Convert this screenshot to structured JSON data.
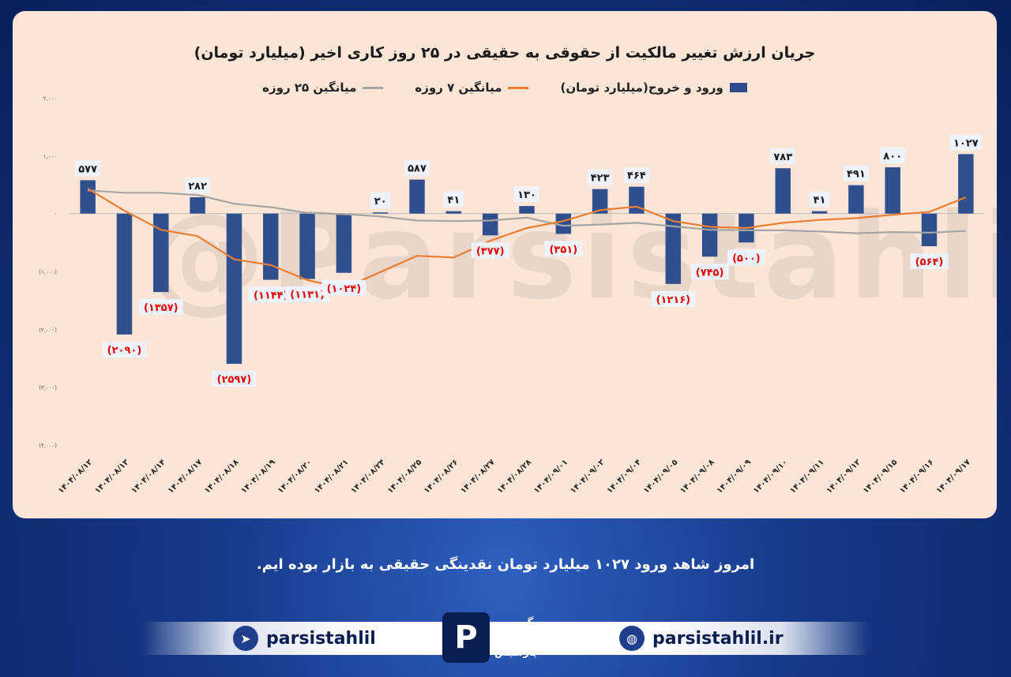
{
  "colors": {
    "bar": "#2f4f8f",
    "ma7": "#ed7d31",
    "ma25": "#a5a5a5",
    "neg_label": "#e60000",
    "pos_label": "#1a1a1a"
  },
  "chart_data": {
    "type": "bar",
    "title": "جریان ارزش تغییر مالکیت از حقوقی به حقیقی در ۲۵ روز کاری اخیر (میلیارد تومان)",
    "legend": [
      "ورود و خروج(میلیارد تومان)",
      "میانگین ۷ روزه",
      "میانگین ۲۵ روزه"
    ],
    "legend_position": "top",
    "ylim": [
      -4000,
      2000
    ],
    "yticks": [
      "(۴,۰۰۰)",
      "(۳,۰۰۰)",
      "(۲,۰۰۰)",
      "(۱,۰۰۰)",
      "۰",
      "۱,۰۰۰",
      "۲,۰۰۰"
    ],
    "ytick_values": [
      -4000,
      -3000,
      -2000,
      -1000,
      0,
      1000,
      2000
    ],
    "categories": [
      "۱۴۰۴/۰۸/۱۲",
      "۱۴۰۴/۰۸/۱۳",
      "۱۴۰۴/۰۸/۱۴",
      "۱۴۰۴/۰۸/۱۷",
      "۱۴۰۴/۰۸/۱۸",
      "۱۴۰۴/۰۸/۱۹",
      "۱۴۰۴/۰۸/۲۰",
      "۱۴۰۴/۰۸/۲۱",
      "۱۴۰۴/۰۸/۲۴",
      "۱۴۰۴/۰۸/۲۵",
      "۱۴۰۴/۰۸/۲۶",
      "۱۴۰۴/۰۸/۲۷",
      "۱۴۰۴/۰۸/۲۸",
      "۱۴۰۴/۰۹/۰۱",
      "۱۴۰۴/۰۹/۰۲",
      "۱۴۰۴/۰۹/۰۴",
      "۱۴۰۴/۰۹/۰۵",
      "۱۴۰۴/۰۹/۰۸",
      "۱۴۰۴/۰۹/۰۹",
      "۱۴۰۴/۰۹/۱۰",
      "۱۴۰۴/۰۹/۱۱",
      "۱۴۰۴/۰۹/۱۲",
      "۱۴۰۴/۰۹/۱۵",
      "۱۴۰۴/۰۹/۱۶",
      "۱۴۰۴/۰۹/۱۷"
    ],
    "series": [
      {
        "name": "ورود و خروج(میلیارد تومان)",
        "values": [
          577,
          -2090,
          -1357,
          282,
          -2597,
          -1144,
          -1131,
          -1024,
          20,
          587,
          41,
          -377,
          130,
          -351,
          423,
          464,
          -1216,
          -745,
          -500,
          783,
          41,
          491,
          800,
          -564,
          1027
        ],
        "labels": [
          "۵۷۷",
          "(۲۰۹۰)",
          "(۱۳۵۷)",
          "۲۸۲",
          "(۲۵۹۷)",
          "(۱۱۴۴)",
          "(۱۱۳۱)",
          "(۱۰۲۴)",
          "۲۰",
          "۵۸۷",
          "۴۱",
          "(۳۷۷)",
          "۱۳۰",
          "(۳۵۱)",
          "۴۲۳",
          "۴۶۴",
          "(۱۲۱۶)",
          "(۷۴۵)",
          "(۵۰۰)",
          "۷۸۳",
          "۴۱",
          "۴۹۱",
          "۸۰۰",
          "(۵۶۴)",
          "۱۰۲۷"
        ]
      },
      {
        "name": "میانگین ۷ روزه",
        "values": [
          430,
          50,
          -280,
          -390,
          -790,
          -890,
          -1150,
          null,
          null,
          -730,
          -760,
          -470,
          -250,
          -130,
          60,
          120,
          -130,
          -230,
          -250,
          -160,
          -110,
          -80,
          -20,
          30,
          280
        ]
      },
      {
        "name": "میانگین ۲۵ روزه",
        "values": [
          400,
          360,
          360,
          320,
          170,
          110,
          10,
          -10,
          -50,
          -120,
          -130,
          -120,
          -70,
          -210,
          -190,
          -160,
          -220,
          -280,
          -290,
          -290,
          -310,
          -340,
          -320,
          -330,
          -300
        ]
      }
    ]
  },
  "watermark": "@Parsistahlil",
  "footer": {
    "message": "امروز شاهد ورود ۱۰۲۷ میلیارد تومان نقدینگی حقیقی به بازار بوده ایم.",
    "telegram_handle": "parsistahlil",
    "website": "parsistahlil.ir",
    "logo_letter": "P",
    "logo_text": [
      "گـــروه",
      "تحلیلـی",
      "پارسیس"
    ]
  }
}
